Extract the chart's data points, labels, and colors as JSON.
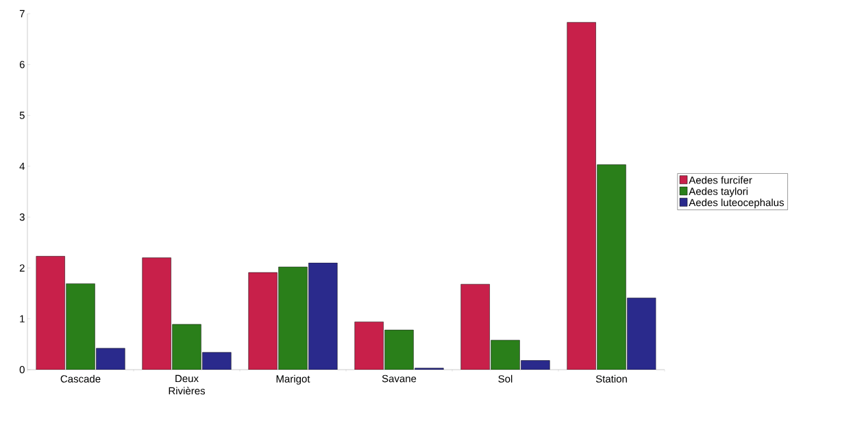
{
  "chart_data": {
    "type": "bar",
    "categories": [
      "Cascade",
      "Deux Rivières",
      "Marigot",
      "Savane",
      "Sol",
      "Station"
    ],
    "series": [
      {
        "name": "Aedes furcifer",
        "color": "#c8204a",
        "values": [
          2.23,
          2.2,
          1.91,
          0.94,
          1.68,
          6.83
        ]
      },
      {
        "name": "Aedes taylori",
        "color": "#2a7f1a",
        "values": [
          1.69,
          0.89,
          2.02,
          0.78,
          0.58,
          4.03
        ]
      },
      {
        "name": "Aedes luteocephalus",
        "color": "#2a2a8c",
        "values": [
          0.42,
          0.34,
          2.1,
          0.03,
          0.18,
          1.41
        ]
      }
    ],
    "ylim": [
      0,
      7
    ],
    "yticks": [
      0,
      1,
      2,
      3,
      4,
      5,
      6,
      7
    ],
    "grid": false,
    "legend": "right"
  }
}
